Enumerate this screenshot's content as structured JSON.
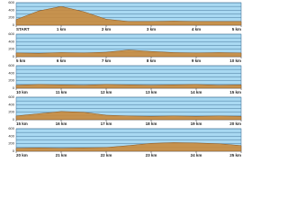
{
  "chart_data": [
    {
      "type": "area",
      "color": "#c98a3c",
      "background": "#a9d9f2",
      "grid": true,
      "x": [
        0,
        0.5,
        1,
        1.5,
        2,
        2.5,
        3,
        3.5,
        4,
        4.5,
        5
      ],
      "values": [
        150,
        380,
        500,
        360,
        160,
        100,
        100,
        110,
        100,
        100,
        100
      ],
      "xlim": [
        0,
        5
      ],
      "ylim": [
        0,
        600
      ],
      "yticks": [
        0,
        100,
        200,
        300,
        400,
        500,
        600
      ],
      "xticks": [
        {
          "value": 0,
          "label": "START"
        },
        {
          "value": 1,
          "label": "1 km"
        },
        {
          "value": 2,
          "label": "2 km"
        },
        {
          "value": 3,
          "label": "3 km"
        },
        {
          "value": 4,
          "label": "4 km"
        },
        {
          "value": 5,
          "label": "5 km"
        }
      ]
    },
    {
      "type": "area",
      "color": "#c98a3c",
      "background": "#a9d9f2",
      "grid": true,
      "x": [
        5,
        5.5,
        6,
        6.5,
        7,
        7.5,
        8,
        8.5,
        9,
        9.5,
        10
      ],
      "values": [
        100,
        90,
        110,
        100,
        120,
        180,
        140,
        110,
        100,
        110,
        100
      ],
      "xlim": [
        5,
        10
      ],
      "ylim": [
        0,
        600
      ],
      "yticks": [
        0,
        100,
        200,
        300,
        400,
        500,
        600
      ],
      "xticks": [
        {
          "value": 5,
          "label": "5 km"
        },
        {
          "value": 6,
          "label": "6 km"
        },
        {
          "value": 7,
          "label": "7 km"
        },
        {
          "value": 8,
          "label": "8 km"
        },
        {
          "value": 9,
          "label": "9 km"
        },
        {
          "value": 10,
          "label": "10 km"
        }
      ]
    },
    {
      "type": "area",
      "color": "#c98a3c",
      "background": "#a9d9f2",
      "grid": true,
      "x": [
        10,
        10.5,
        11,
        11.5,
        12,
        12.5,
        13,
        13.5,
        14,
        14.5,
        15
      ],
      "values": [
        80,
        100,
        90,
        80,
        100,
        90,
        80,
        90,
        100,
        80,
        90
      ],
      "xlim": [
        10,
        15
      ],
      "ylim": [
        0,
        600
      ],
      "yticks": [
        0,
        100,
        200,
        300,
        400,
        500,
        600
      ],
      "xticks": [
        {
          "value": 10,
          "label": "10 km"
        },
        {
          "value": 11,
          "label": "11 km"
        },
        {
          "value": 12,
          "label": "12 km"
        },
        {
          "value": 13,
          "label": "13 km"
        },
        {
          "value": 14,
          "label": "14 km"
        },
        {
          "value": 15,
          "label": "15 km"
        }
      ]
    },
    {
      "type": "area",
      "color": "#c98a3c",
      "background": "#a9d9f2",
      "grid": true,
      "x": [
        15,
        15.5,
        16,
        16.5,
        17,
        17.5,
        18,
        18.5,
        19,
        19.5,
        20
      ],
      "values": [
        100,
        160,
        220,
        200,
        120,
        100,
        90,
        100,
        90,
        100,
        90
      ],
      "xlim": [
        15,
        20
      ],
      "ylim": [
        0,
        600
      ],
      "yticks": [
        0,
        100,
        200,
        300,
        400,
        500,
        600
      ],
      "xticks": [
        {
          "value": 15,
          "label": "15 km"
        },
        {
          "value": 16,
          "label": "16 km"
        },
        {
          "value": 17,
          "label": "17 km"
        },
        {
          "value": 18,
          "label": "18 km"
        },
        {
          "value": 19,
          "label": "19 km"
        },
        {
          "value": 20,
          "label": "20 km"
        }
      ]
    },
    {
      "type": "area",
      "color": "#c98a3c",
      "background": "#a9d9f2",
      "grid": true,
      "x": [
        20,
        20.5,
        21,
        21.5,
        22,
        22.5,
        23,
        23.5,
        24,
        24.5,
        25
      ],
      "values": [
        80,
        90,
        80,
        90,
        100,
        150,
        210,
        230,
        220,
        200,
        150
      ],
      "xlim": [
        20,
        25
      ],
      "ylim": [
        0,
        600
      ],
      "yticks": [
        0,
        100,
        200,
        300,
        400,
        500,
        600
      ],
      "xticks": [
        {
          "value": 20,
          "label": "20 km"
        },
        {
          "value": 21,
          "label": "21 km"
        },
        {
          "value": 22,
          "label": "22 km"
        },
        {
          "value": 23,
          "label": "23 km"
        },
        {
          "value": 24,
          "label": "24 km"
        },
        {
          "value": 25,
          "label": "25 km"
        }
      ]
    }
  ]
}
